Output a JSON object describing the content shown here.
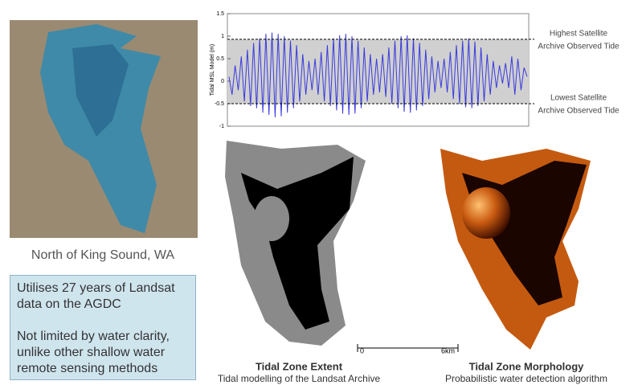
{
  "location_caption": "North of King Sound, WA",
  "info_box": {
    "paragraphs": [
      [
        "Utilises 27 years of  Landsat",
        "data on the AGDC"
      ],
      [
        "Not limited by water clarity,",
        "unlike other shallow water",
        "remote sensing methods"
      ]
    ]
  },
  "tide_chart": {
    "type": "line",
    "y_label": "Tidal MSL Model (m)",
    "ylim": [
      -1,
      1.5
    ],
    "yticks": [
      1.5,
      1,
      0.5,
      0,
      -0.5,
      -1
    ],
    "color": "#3a3adf",
    "band_color": "#d0d0d0",
    "highest_tide": 0.93,
    "lowest_tide": -0.5,
    "highest_label": [
      "Highest Satellite",
      "Archive Observed Tide"
    ],
    "lowest_label": [
      "Lowest Satellite",
      "Archive Observed Tide"
    ],
    "values": [
      0.1,
      -0.3,
      0.35,
      -0.2,
      0.55,
      -0.45,
      0.7,
      -0.55,
      0.85,
      -0.6,
      0.95,
      -0.7,
      1.05,
      -0.75,
      1.08,
      -0.8,
      1.05,
      -0.78,
      1.0,
      -0.7,
      0.9,
      -0.6,
      0.8,
      -0.45,
      0.6,
      -0.3,
      0.45,
      -0.2,
      0.5,
      -0.3,
      0.65,
      -0.45,
      0.8,
      -0.55,
      0.95,
      -0.65,
      1.02,
      -0.72,
      1.05,
      -0.75,
      1.0,
      -0.72,
      0.9,
      -0.6,
      0.75,
      -0.45,
      0.6,
      -0.3,
      0.5,
      -0.25,
      0.6,
      -0.35,
      0.75,
      -0.5,
      0.9,
      -0.6,
      1.0,
      -0.68,
      1.02,
      -0.7,
      0.95,
      -0.65,
      0.85,
      -0.55,
      0.7,
      -0.4,
      0.55,
      -0.25,
      0.45,
      -0.15,
      0.5,
      -0.25,
      0.65,
      -0.4,
      0.8,
      -0.5,
      0.9,
      -0.58,
      0.95,
      -0.6,
      0.88,
      -0.55,
      0.75,
      -0.45,
      0.6,
      -0.3,
      0.45,
      -0.15,
      0.35,
      -0.05,
      0.4,
      -0.15,
      0.55,
      -0.3,
      0.5,
      -0.2,
      0.3,
      0.1
    ]
  },
  "scale_bar": {
    "labels": [
      "0",
      "6km"
    ]
  },
  "panels": [
    {
      "title": "Tidal Zone Extent",
      "subtitle": "Tidal modelling of the Landsat Archive"
    },
    {
      "title": "Tidal Zone Morphology",
      "subtitle": "Probabilistic water detection algorithm"
    }
  ]
}
